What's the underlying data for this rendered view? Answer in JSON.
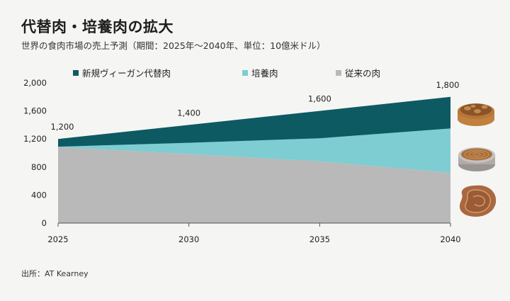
{
  "title": "代替肉・培養肉の拡大",
  "subtitle": "世界の食肉市場の売上予測（期間：2025年〜2040年、単位：10億米ドル）",
  "source": "出所：AT Kearney",
  "colors": {
    "plant_based": "#0d5a63",
    "cultured": "#7ecdd2",
    "conventional": "#b9b9b9",
    "background": "#f5f5f4"
  },
  "chart_data": {
    "type": "area",
    "stacked": true,
    "x": [
      2025,
      2030,
      2035,
      2040
    ],
    "x_ticks": [
      "2025",
      "2030",
      "2035",
      "2040"
    ],
    "y_ticks": [
      "0",
      "400",
      "800",
      "1,200",
      "1,600",
      "2,000"
    ],
    "ylim": [
      0,
      2000
    ],
    "series": [
      {
        "name": "従来の肉",
        "color": "#b9b9b9",
        "values": [
          1085,
          985,
          880,
          720
        ]
      },
      {
        "name": "培養肉",
        "color": "#7ecdd2",
        "values": [
          5,
          160,
          330,
          630
        ]
      },
      {
        "name": "新規ヴィーガン代替肉",
        "color": "#0d5a63",
        "values": [
          110,
          255,
          390,
          450
        ]
      }
    ],
    "legend_order": [
      "新規ヴィーガン代替肉",
      "培養肉",
      "従来の肉"
    ],
    "legend_position": "top",
    "total_labels": [
      "1,200",
      "1,400",
      "1,600",
      "1,800"
    ],
    "totals": [
      1200,
      1400,
      1600,
      1800
    ],
    "grid": false
  },
  "icons": [
    "cultured-meat-dish-icon",
    "petri-dish-icon",
    "steak-icon"
  ]
}
